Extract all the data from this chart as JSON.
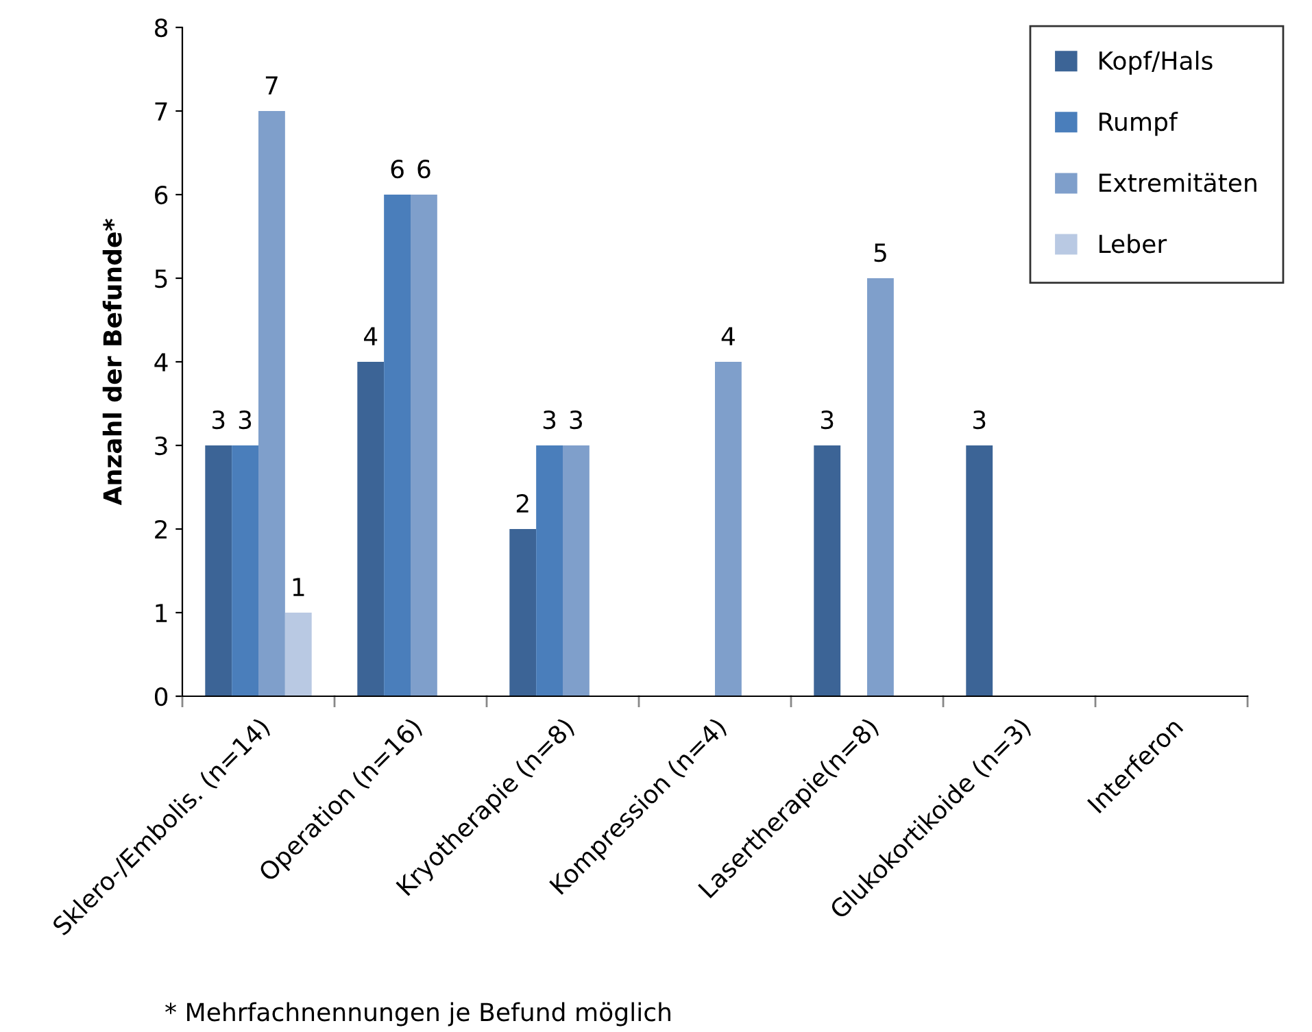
{
  "chart_data": {
    "type": "bar",
    "ylabel": "Anzahl der Befunde*",
    "categories": [
      "Sklero-/Embolis. (n=14)",
      "Operation (n=16)",
      "Kryotherapie (n=8)",
      "Kompression (n=4)",
      "Lasertherapie(n=8)",
      "Glukokortikoide (n=3)",
      "Interferon"
    ],
    "series": [
      {
        "name": "Kopf/Hals",
        "color": "#3c6496",
        "values": [
          3,
          4,
          2,
          null,
          3,
          3,
          null
        ]
      },
      {
        "name": "Rumpf",
        "color": "#4a7ebb",
        "values": [
          3,
          6,
          3,
          null,
          null,
          null,
          null
        ]
      },
      {
        "name": "Extremitäten",
        "color": "#7f9fcb",
        "values": [
          7,
          6,
          3,
          4,
          5,
          null,
          null
        ]
      },
      {
        "name": "Leber",
        "color": "#b9c9e3",
        "values": [
          1,
          null,
          null,
          null,
          null,
          null,
          null
        ]
      }
    ],
    "ylim": [
      0,
      8
    ],
    "yticks": [
      0,
      1,
      2,
      3,
      4,
      5,
      6,
      7,
      8
    ],
    "data_labels": true,
    "legend": "top right",
    "grid": false,
    "annotations": [
      "* Mehrfachnennungen je Befund möglich"
    ]
  }
}
